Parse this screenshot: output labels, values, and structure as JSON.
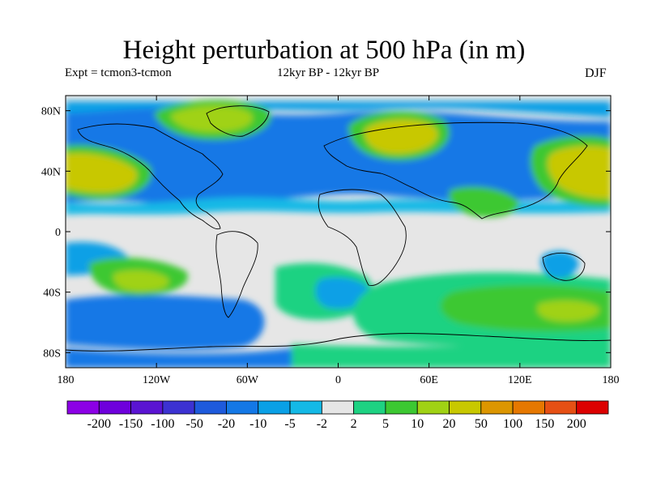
{
  "title": "Height perturbation at 500 hPa (in m)",
  "subtitle_left": "Expt = tcmon3-tcmon",
  "subtitle_center": "12kyr BP - 12kyr BP",
  "subtitle_right": "DJF",
  "map": {
    "projection": "cylindrical-equidistant",
    "lon_range": [
      -180,
      180
    ],
    "lat_range": [
      -90,
      90
    ],
    "x_ticks": [
      "180",
      "120W",
      "60W",
      "0",
      "60E",
      "120E",
      "180"
    ],
    "y_ticks": [
      "80N",
      "40N",
      "0",
      "40S",
      "80S"
    ],
    "background_color": "#e6e6e6",
    "coastline_color": "#000000"
  },
  "colorbar": {
    "labels": [
      "-200",
      "-150",
      "-100",
      "-50",
      "-20",
      "-10",
      "-5",
      "-2",
      "2",
      "5",
      "10",
      "20",
      "50",
      "100",
      "150",
      "200"
    ],
    "colors": [
      "#8c00e6",
      "#6e00dc",
      "#5a14d2",
      "#3c32d2",
      "#1e5adc",
      "#1478e6",
      "#0aa0e6",
      "#14b9e6",
      "#e6e6e6",
      "#1ed282",
      "#3cc832",
      "#a0d214",
      "#c8c800",
      "#dc9600",
      "#e67800",
      "#e65014",
      "#dc0000"
    ]
  }
}
